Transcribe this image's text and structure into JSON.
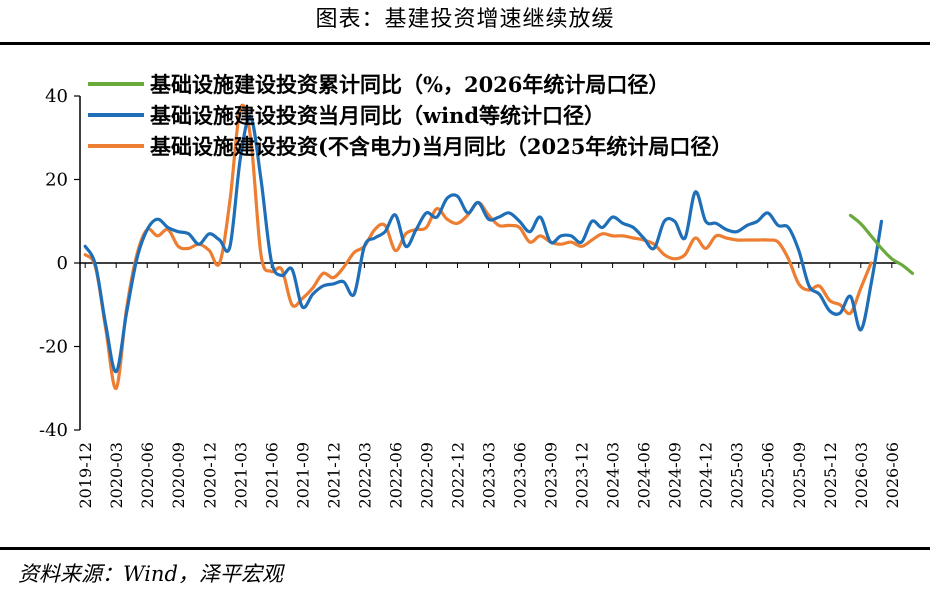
{
  "title": "图表：基建投资增速继续放缓",
  "source": "资料来源：Wind，泽平宏观",
  "chart_data": {
    "type": "line",
    "ylim": [
      -40,
      40
    ],
    "yticks": [
      -40,
      -20,
      0,
      20,
      40
    ],
    "grid": false,
    "legend_position": "top",
    "x_start": "2019-12",
    "x_end": "2026-06",
    "tick_labels": [
      "2019-12",
      "2020-03",
      "2020-06",
      "2020-09",
      "2020-12",
      "2021-03",
      "2021-06",
      "2021-09",
      "2021-12",
      "2022-03",
      "2022-06",
      "2022-09",
      "2022-12",
      "2023-03",
      "2023-06",
      "2023-09",
      "2023-12",
      "2024-03",
      "2024-06",
      "2024-09",
      "2024-12",
      "2025-03",
      "2025-06",
      "2025-09",
      "2025-12",
      "2026-03",
      "2026-06"
    ],
    "series": [
      {
        "name": "基础设施建设投资累计同比（%，2026年统计局口径）",
        "color": "#6aaa3c",
        "start": "2026-02",
        "values": [
          11.4,
          9.4,
          6.5,
          3.5,
          1.0,
          -0.5,
          -2.5
        ]
      },
      {
        "name": "基础设施建设投资当月同比（wind等统计口径）",
        "color": "#1f6fb8",
        "start": "2019-12",
        "values": [
          4.0,
          -0.5,
          -15.0,
          -26.0,
          -12.0,
          1.0,
          8.0,
          10.5,
          8.5,
          7.5,
          7.0,
          4.5,
          7.0,
          5.5,
          4.0,
          25.0,
          35.0,
          20.0,
          0.5,
          -3.0,
          -1.5,
          -10.5,
          -7.5,
          -5.5,
          -5.0,
          -4.5,
          -7.5,
          4.0,
          6.0,
          7.5,
          11.5,
          4.0,
          8.0,
          12.0,
          11.0,
          15.5,
          16.0,
          12.0,
          14.5,
          10.5,
          11.0,
          12.0,
          10.0,
          7.5,
          11.0,
          5.0,
          6.5,
          6.5,
          5.0,
          10.0,
          8.5,
          11.0,
          9.5,
          8.5,
          6.0,
          3.5,
          10.0,
          10.0,
          6.0,
          17.0,
          10.0,
          9.5,
          8.0,
          7.5,
          9.0,
          10.0,
          12.0,
          9.0,
          8.5,
          3.0,
          -5.5,
          -7.5,
          -11.5,
          -12.0,
          -8.0,
          -16.0,
          -5.0,
          10.0
        ]
      },
      {
        "name": "基础设施建设投资(不含电力)当月同比（2025年统计局口径）",
        "color": "#ed7d31",
        "start": "2019-12",
        "values": [
          2.0,
          -1.0,
          -16.0,
          -30.0,
          -11.0,
          2.0,
          8.0,
          6.5,
          8.0,
          4.0,
          3.5,
          4.5,
          3.0,
          0.0,
          15.0,
          37.0,
          30.0,
          2.0,
          -2.0,
          -1.5,
          -10.0,
          -8.5,
          -6.0,
          -2.5,
          -3.5,
          -1.0,
          2.5,
          4.0,
          8.0,
          9.0,
          3.0,
          7.0,
          8.0,
          8.5,
          13.0,
          10.5,
          9.5,
          11.5,
          14.5,
          11.5,
          9.0,
          9.0,
          8.5,
          5.0,
          6.5,
          5.0,
          4.5,
          5.0,
          4.0,
          5.5,
          7.0,
          6.5,
          6.5,
          6.0,
          5.5,
          4.5,
          2.0,
          1.0,
          2.0,
          6.0,
          3.5,
          6.5,
          6.0,
          5.5,
          5.5,
          5.5,
          5.5,
          5.0,
          1.0,
          -5.0,
          -6.5,
          -5.5,
          -9.0,
          -10.0,
          -12.0,
          -6.0,
          0.0
        ]
      }
    ]
  }
}
